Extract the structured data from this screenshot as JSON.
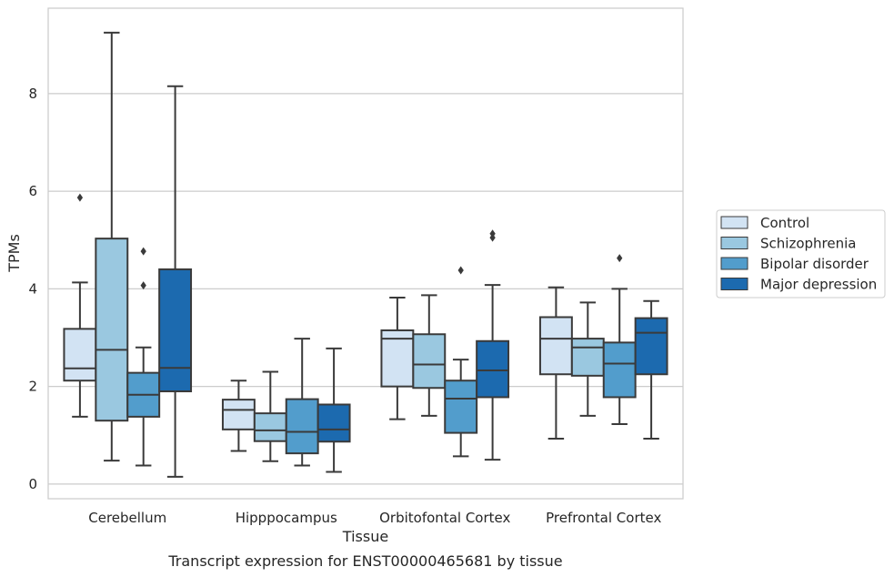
{
  "caption": "Transcript expression for ENST00000465681 by tissue",
  "chart_data": {
    "type": "box",
    "xlabel": "Tissue",
    "ylabel": "TPMs",
    "ylim": [
      -0.3,
      9.75
    ],
    "yticks": [
      0,
      2,
      4,
      6,
      8
    ],
    "grid": "horizontal",
    "legend_position": "right",
    "categories": [
      "Cerebellum",
      "Hipppocampus",
      "Orbitofontal Cortex",
      "Prefrontal Cortex"
    ],
    "series": [
      {
        "name": "Control",
        "color": "#d2e3f3",
        "boxes": [
          {
            "whisker_low": 1.38,
            "q1": 2.12,
            "median": 2.37,
            "q3": 3.18,
            "whisker_high": 4.13,
            "outliers": [
              5.87
            ]
          },
          {
            "whisker_low": 0.68,
            "q1": 1.12,
            "median": 1.52,
            "q3": 1.73,
            "whisker_high": 2.12,
            "outliers": []
          },
          {
            "whisker_low": 1.33,
            "q1": 2.0,
            "median": 2.98,
            "q3": 3.15,
            "whisker_high": 3.82,
            "outliers": []
          },
          {
            "whisker_low": 0.93,
            "q1": 2.25,
            "median": 2.98,
            "q3": 3.42,
            "whisker_high": 4.03,
            "outliers": []
          }
        ]
      },
      {
        "name": "Schizophrenia",
        "color": "#9ac8e0",
        "boxes": [
          {
            "whisker_low": 0.48,
            "q1": 1.3,
            "median": 2.75,
            "q3": 5.03,
            "whisker_high": 9.25,
            "outliers": []
          },
          {
            "whisker_low": 0.47,
            "q1": 0.88,
            "median": 1.1,
            "q3": 1.45,
            "whisker_high": 2.3,
            "outliers": []
          },
          {
            "whisker_low": 1.4,
            "q1": 1.97,
            "median": 2.45,
            "q3": 3.07,
            "whisker_high": 3.87,
            "outliers": []
          },
          {
            "whisker_low": 1.4,
            "q1": 2.22,
            "median": 2.8,
            "q3": 2.98,
            "whisker_high": 3.72,
            "outliers": []
          }
        ]
      },
      {
        "name": "Bipolar disorder",
        "color": "#529dcc",
        "boxes": [
          {
            "whisker_low": 0.38,
            "q1": 1.38,
            "median": 1.83,
            "q3": 2.28,
            "whisker_high": 2.8,
            "outliers": [
              4.07,
              4.77
            ]
          },
          {
            "whisker_low": 0.38,
            "q1": 0.63,
            "median": 1.07,
            "q3": 1.74,
            "whisker_high": 2.98,
            "outliers": []
          },
          {
            "whisker_low": 0.57,
            "q1": 1.05,
            "median": 1.75,
            "q3": 2.12,
            "whisker_high": 2.55,
            "outliers": [
              4.38
            ]
          },
          {
            "whisker_low": 1.23,
            "q1": 1.78,
            "median": 2.47,
            "q3": 2.9,
            "whisker_high": 4.0,
            "outliers": [
              4.63
            ]
          }
        ]
      },
      {
        "name": "Major depression",
        "color": "#1c6aaf",
        "boxes": [
          {
            "whisker_low": 0.15,
            "q1": 1.9,
            "median": 2.38,
            "q3": 4.4,
            "whisker_high": 8.15,
            "outliers": []
          },
          {
            "whisker_low": 0.25,
            "q1": 0.87,
            "median": 1.12,
            "q3": 1.63,
            "whisker_high": 2.78,
            "outliers": []
          },
          {
            "whisker_low": 0.5,
            "q1": 1.78,
            "median": 2.33,
            "q3": 2.93,
            "whisker_high": 4.08,
            "outliers": [
              5.05,
              5.13
            ]
          },
          {
            "whisker_low": 0.93,
            "q1": 2.25,
            "median": 3.1,
            "q3": 3.4,
            "whisker_high": 3.75,
            "outliers": []
          }
        ]
      }
    ]
  }
}
